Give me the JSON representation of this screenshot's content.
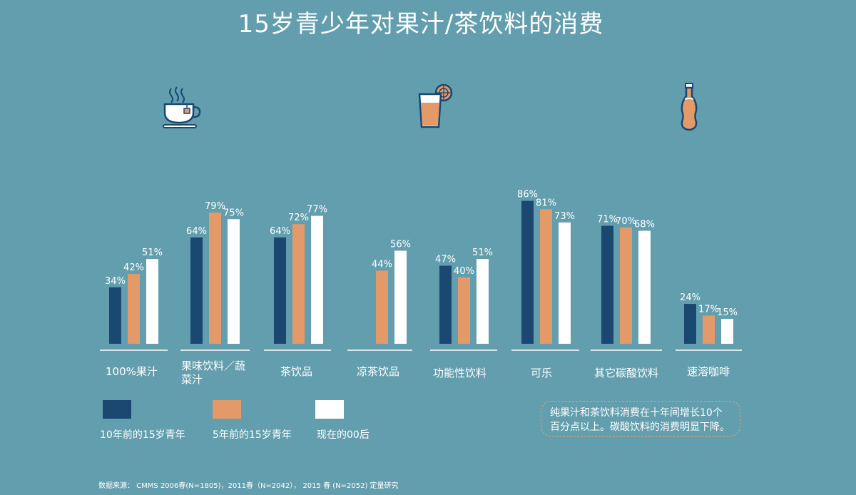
{
  "title": "15岁青少年对果汁/茶饮料的消费",
  "chart_data": {
    "type": "bar",
    "categories": [
      "100%果汁",
      "果味饮料／蔬菜汁",
      "茶饮品",
      "凉茶饮品",
      "功能性饮料",
      "可乐",
      "其它碳酸饮料",
      "速溶咖啡"
    ],
    "series": [
      {
        "name": "10年前的15岁青年",
        "values": [
          34,
          64,
          64,
          null,
          47,
          86,
          71,
          24
        ]
      },
      {
        "name": "5年前的15岁青年",
        "values": [
          42,
          79,
          72,
          44,
          40,
          81,
          70,
          17
        ]
      },
      {
        "name": "现在的00后",
        "values": [
          51,
          75,
          77,
          56,
          51,
          73,
          68,
          15
        ]
      }
    ],
    "value_suffix": "%",
    "ylim": [
      0,
      100
    ],
    "grid": false,
    "legend_position": "bottom-left"
  },
  "colors": {
    "background": "#639eae",
    "series": [
      "#1a4870",
      "#e39a68",
      "#ffffff"
    ],
    "note_border": "#e8a070",
    "icon_orange": "#e39a68",
    "icon_navy": "#1a4870"
  },
  "icons": [
    "tea-cup-icon",
    "juice-glass-icon",
    "soda-bottle-icon"
  ],
  "note": {
    "line1": "纯果汁和茶饮料消费在十年间增长10个",
    "line2": "百分点以上。碳酸饮料的消费明显下降。"
  },
  "source": "数据来源：  CMMS 2006春(N=1805)，2011春（N=2042），  2015 春 (N=2052)  定量研究"
}
